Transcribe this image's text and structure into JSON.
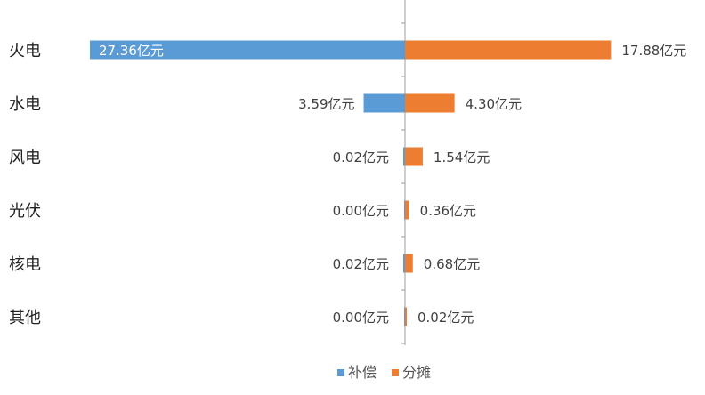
{
  "colors": {
    "compensation": "#5b9bd5",
    "allocation": "#ed7d31",
    "axis": "#9e9e9e"
  },
  "chart_data": {
    "type": "bar",
    "orientation": "horizontal-diverging",
    "categories": [
      "火电",
      "水电",
      "风电",
      "光伏",
      "核电",
      "其他"
    ],
    "series": [
      {
        "name": "补偿",
        "values": [
          27.36,
          3.59,
          0.02,
          0.0,
          0.02,
          0.0
        ],
        "labels": [
          "27.36亿元",
          "3.59亿元",
          "0.02亿元",
          "0.00亿元",
          "0.02亿元",
          "0.00亿元"
        ]
      },
      {
        "name": "分摊",
        "values": [
          17.88,
          4.3,
          1.54,
          0.36,
          0.68,
          0.02
        ],
        "labels": [
          "17.88亿元",
          "4.30亿元",
          "1.54亿元",
          "0.36亿元",
          "0.68亿元",
          "0.02亿元"
        ]
      }
    ],
    "legend_position": "bottom-center",
    "grid": false
  }
}
